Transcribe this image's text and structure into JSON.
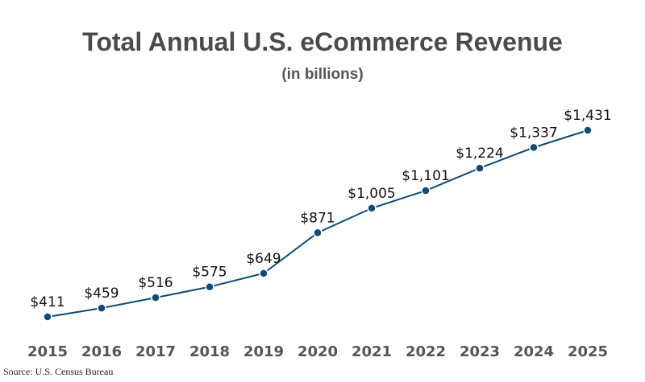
{
  "chart_data": {
    "type": "line",
    "title": "Total Annual U.S. eCommerce Revenue",
    "subtitle": "(in billions)",
    "xlabel": "",
    "ylabel": "",
    "categories": [
      "2015",
      "2016",
      "2017",
      "2018",
      "2019",
      "2020",
      "2021",
      "2022",
      "2023",
      "2024",
      "2025"
    ],
    "values": [
      411,
      459,
      516,
      575,
      649,
      871,
      1005,
      1101,
      1224,
      1337,
      1431
    ],
    "data_labels": [
      "$411",
      "$459",
      "$516",
      "$575",
      "$649",
      "$871",
      "$1,005",
      "$1,101",
      "$1,224",
      "$1,337",
      "$1,431"
    ],
    "grid": false,
    "legend": "none",
    "line_color": "#0d4a75"
  },
  "source": "Source: U.S. Census Bureau"
}
